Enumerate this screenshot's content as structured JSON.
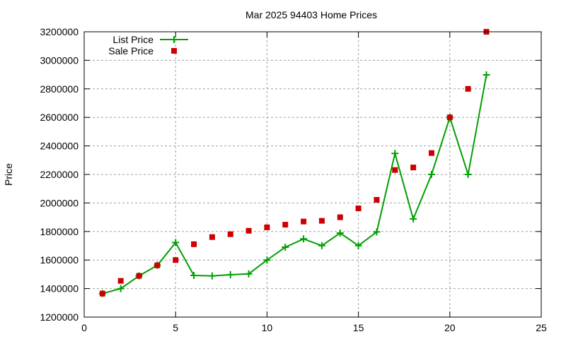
{
  "chart_data": {
    "type": "line",
    "title": "Mar 2025 94403 Home Prices",
    "xlabel": "",
    "ylabel": "Price",
    "xlim": [
      0,
      25
    ],
    "ylim": [
      1200000,
      3200000
    ],
    "x_ticks": [
      0,
      5,
      10,
      15,
      20,
      25
    ],
    "y_ticks": [
      1200000,
      1400000,
      1600000,
      1800000,
      2000000,
      2200000,
      2400000,
      2600000,
      2800000,
      3000000,
      3200000
    ],
    "grid": true,
    "legend_position": "top-left",
    "x": [
      1,
      2,
      3,
      4,
      5,
      6,
      7,
      8,
      9,
      10,
      11,
      12,
      13,
      14,
      15,
      16,
      17,
      18,
      19,
      20,
      21,
      22
    ],
    "series": [
      {
        "name": "List Price",
        "style": "line+cross",
        "color": "#00a000",
        "values": [
          1365000,
          1400000,
          1489000,
          1563000,
          1723000,
          1492000,
          1489000,
          1497000,
          1503000,
          1600000,
          1690000,
          1748000,
          1701000,
          1789000,
          1701000,
          1797000,
          2347000,
          1888000,
          2200000,
          2600000,
          2200000,
          2898000
        ]
      },
      {
        "name": "Sale Price",
        "style": "square-markers",
        "color": "#cc0000",
        "values": [
          1365000,
          1454000,
          1489000,
          1563000,
          1600000,
          1711000,
          1761000,
          1781000,
          1805000,
          1829000,
          1848000,
          1870000,
          1875000,
          1900000,
          1962000,
          2022000,
          2231000,
          2249000,
          2350000,
          2600000,
          2800000,
          3200000
        ]
      }
    ]
  }
}
